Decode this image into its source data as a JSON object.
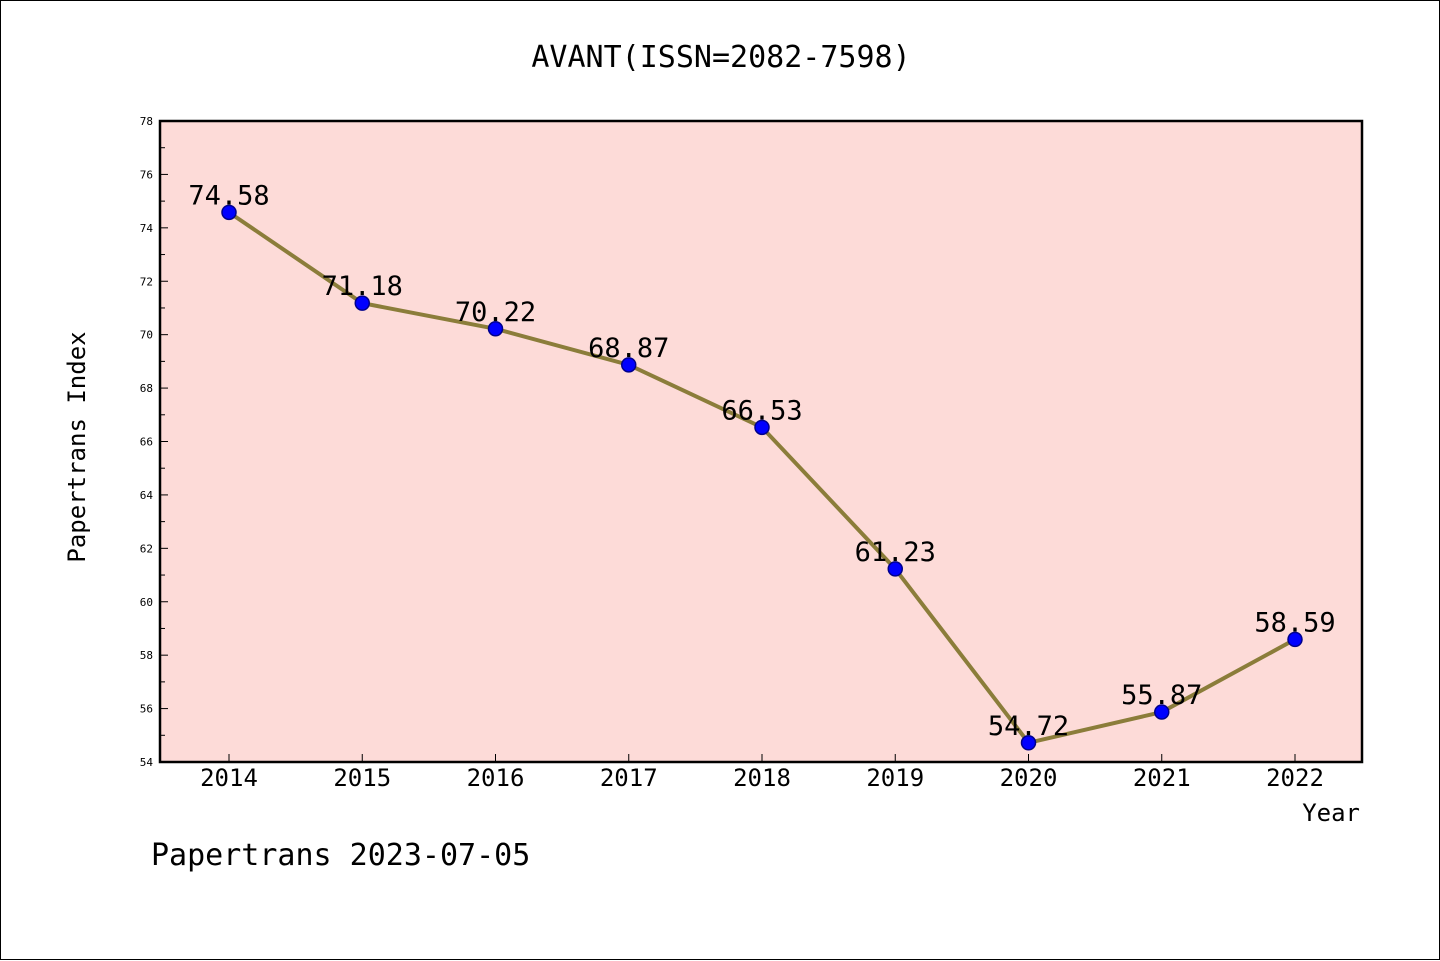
{
  "chart_data": {
    "type": "line",
    "title": "AVANT(ISSN=2082-7598)",
    "xlabel": "Year",
    "ylabel": "Papertrans Index",
    "categories": [
      "2014",
      "2015",
      "2016",
      "2017",
      "2018",
      "2019",
      "2020",
      "2021",
      "2022"
    ],
    "values": [
      74.58,
      71.18,
      70.22,
      68.87,
      66.53,
      61.23,
      54.72,
      55.87,
      58.59
    ],
    "data_labels": [
      "74.58",
      "71.18",
      "70.22",
      "68.87",
      "66.53",
      "61.23",
      "54.72",
      "55.87",
      "58.59"
    ],
    "ylim": [
      54,
      78
    ],
    "yticks": [
      54,
      56,
      58,
      60,
      62,
      64,
      66,
      68,
      70,
      72,
      74,
      76,
      78
    ],
    "grid": false,
    "colors": {
      "plot_background": "#fddbd8",
      "line": "#8b7d3a",
      "marker_fill": "#0000ff",
      "marker_edge": "#00008b"
    }
  },
  "footer": "Papertrans 2023-07-05"
}
